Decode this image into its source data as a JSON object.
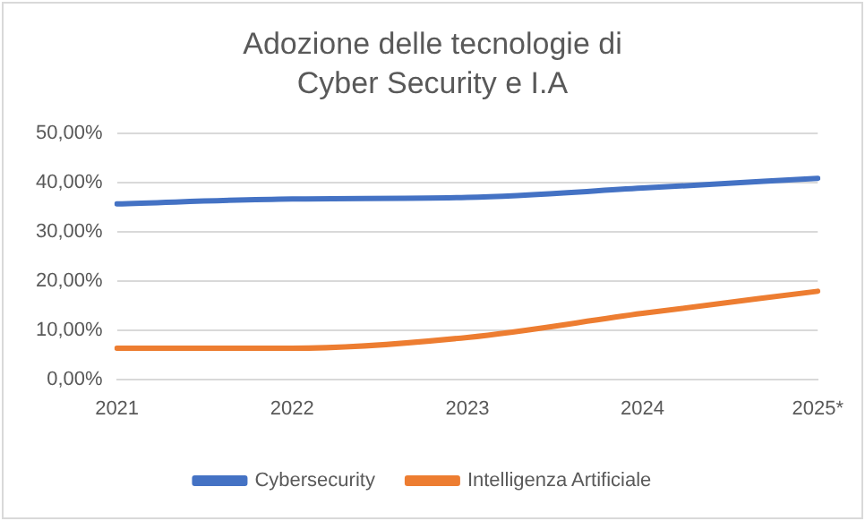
{
  "chart_data": {
    "type": "line",
    "title": "Adozione delle tecnologie di Cyber Security e I.A",
    "categories": [
      "2021",
      "2022",
      "2023",
      "2024",
      "2025*"
    ],
    "series": [
      {
        "name": "Cybersecurity",
        "color": "#4472c4",
        "values": [
          35.7,
          36.7,
          37,
          38.9,
          40.9
        ]
      },
      {
        "name": "Intelligenza Artificiale",
        "color": "#ed7d31",
        "values": [
          6.3,
          6.3,
          8.5,
          13.4,
          17.9
        ]
      }
    ],
    "ylim": [
      0,
      50
    ],
    "yticks": [
      {
        "value": 0,
        "label": "0,00%"
      },
      {
        "value": 10,
        "label": "10,00%"
      },
      {
        "value": 20,
        "label": "20,00%"
      },
      {
        "value": 30,
        "label": "30,00%"
      },
      {
        "value": 40,
        "label": "40,00%"
      },
      {
        "value": 50,
        "label": "50,00%"
      }
    ],
    "grid": "y",
    "legend": "bottom",
    "marker": "none",
    "line_style": "solid"
  }
}
